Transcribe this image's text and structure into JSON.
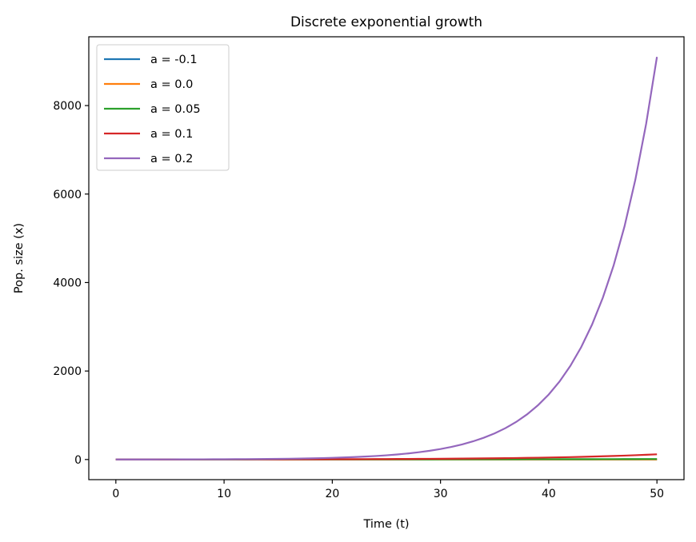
{
  "chart_data": {
    "type": "line",
    "title": "Discrete exponential growth",
    "xlabel": "Time (t)",
    "ylabel": "Pop. size (x)",
    "xlim": [
      -2.5,
      52.5
    ],
    "ylim": [
      -455,
      9555
    ],
    "xticks": [
      0,
      10,
      20,
      30,
      40,
      50
    ],
    "yticks": [
      0,
      2000,
      4000,
      6000,
      8000
    ],
    "grid": false,
    "legend_placement": "upper-left",
    "x": [
      0,
      1,
      2,
      3,
      4,
      5,
      6,
      7,
      8,
      9,
      10,
      11,
      12,
      13,
      14,
      15,
      16,
      17,
      18,
      19,
      20,
      21,
      22,
      23,
      24,
      25,
      26,
      27,
      28,
      29,
      30,
      31,
      32,
      33,
      34,
      35,
      36,
      37,
      38,
      39,
      40,
      41,
      42,
      43,
      44,
      45,
      46,
      47,
      48,
      49,
      50
    ],
    "series": [
      {
        "name": "a = -0.1",
        "color": "#1f77b4",
        "values": [
          1,
          0.9,
          0.81,
          0.729,
          0.6561,
          0.59049,
          0.531441,
          0.478297,
          0.430467,
          0.38742,
          0.348678,
          0.313811,
          0.28243,
          0.254187,
          0.228768,
          0.205891,
          0.185302,
          0.166772,
          0.150095,
          0.135085,
          0.121577,
          0.109419,
          0.0984771,
          0.0886294,
          0.0797664,
          0.0717898,
          0.0646108,
          0.0581497,
          0.0523348,
          0.0471013,
          0.0423912,
          0.038152,
          0.0343368,
          0.0309032,
          0.0278128,
          0.0250316,
          0.0225284,
          0.0202756,
          0.018248,
          0.0164232,
          0.0147809,
          0.0133028,
          0.0119725,
          0.0107753,
          0.00969774,
          0.00872797,
          0.00785517,
          0.00706965,
          0.00636269,
          0.00572642,
          0.00515378
        ]
      },
      {
        "name": "a = 0.0",
        "color": "#ff7f0e",
        "values": [
          1,
          1,
          1,
          1,
          1,
          1,
          1,
          1,
          1,
          1,
          1,
          1,
          1,
          1,
          1,
          1,
          1,
          1,
          1,
          1,
          1,
          1,
          1,
          1,
          1,
          1,
          1,
          1,
          1,
          1,
          1,
          1,
          1,
          1,
          1,
          1,
          1,
          1,
          1,
          1,
          1,
          1,
          1,
          1,
          1,
          1,
          1,
          1,
          1,
          1,
          1
        ]
      },
      {
        "name": "a = 0.05",
        "color": "#2ca02c",
        "values": [
          1,
          1.05,
          1.1025,
          1.15763,
          1.21551,
          1.27628,
          1.3401,
          1.4071,
          1.47746,
          1.55133,
          1.62889,
          1.71034,
          1.79586,
          1.88565,
          1.97993,
          2.07893,
          2.18287,
          2.29202,
          2.40662,
          2.52695,
          2.6533,
          2.78596,
          2.92526,
          3.07152,
          3.2251,
          3.38635,
          3.55567,
          3.73346,
          3.92013,
          4.11614,
          4.32194,
          4.53804,
          4.76494,
          5.00319,
          5.25335,
          5.51602,
          5.79182,
          6.08141,
          6.38548,
          6.70475,
          7.03999,
          7.39199,
          7.76159,
          8.14967,
          8.55715,
          8.98501,
          9.43426,
          9.90597,
          10.4013,
          10.9213,
          11.4674
        ]
      },
      {
        "name": "a = 0.1",
        "color": "#d62728",
        "values": [
          1,
          1.1,
          1.21,
          1.331,
          1.4641,
          1.61051,
          1.77156,
          1.94872,
          2.14359,
          2.35795,
          2.59374,
          2.85312,
          3.13843,
          3.45227,
          3.7975,
          4.17725,
          4.59497,
          5.05447,
          5.55992,
          6.11591,
          6.7275,
          7.40025,
          8.14027,
          8.9543,
          9.84973,
          10.8347,
          11.9182,
          13.11,
          14.421,
          15.8631,
          17.4494,
          19.1943,
          21.1138,
          23.2252,
          25.5477,
          28.1024,
          30.9127,
          34.0039,
          37.4043,
          41.1448,
          45.2593,
          49.7852,
          54.7637,
          60.2401,
          66.2641,
          72.8905,
          80.1795,
          88.1975,
          97.0172,
          106.719,
          117.391
        ]
      },
      {
        "name": "a = 0.2",
        "color": "#9467bd",
        "values": [
          1,
          1.2,
          1.44,
          1.728,
          2.0736,
          2.48832,
          2.98598,
          3.58318,
          4.29982,
          5.15978,
          6.19174,
          7.43008,
          8.9161,
          10.6993,
          12.8392,
          15.407,
          18.4884,
          22.1861,
          26.6233,
          31.948,
          38.3376,
          46.0051,
          55.2061,
          66.2474,
          79.4968,
          95.3962,
          114.475,
          137.371,
          164.845,
          197.814,
          237.376,
          284.852,
          341.822,
          410.186,
          492.224,
          590.668,
          708.802,
          850.562,
          1020.67,
          1224.81,
          1469.77,
          1763.73,
          2116.47,
          2539.77,
          3047.72,
          3657.26,
          4388.71,
          5266.46,
          6319.75,
          7583.7,
          9100.44
        ]
      }
    ]
  }
}
